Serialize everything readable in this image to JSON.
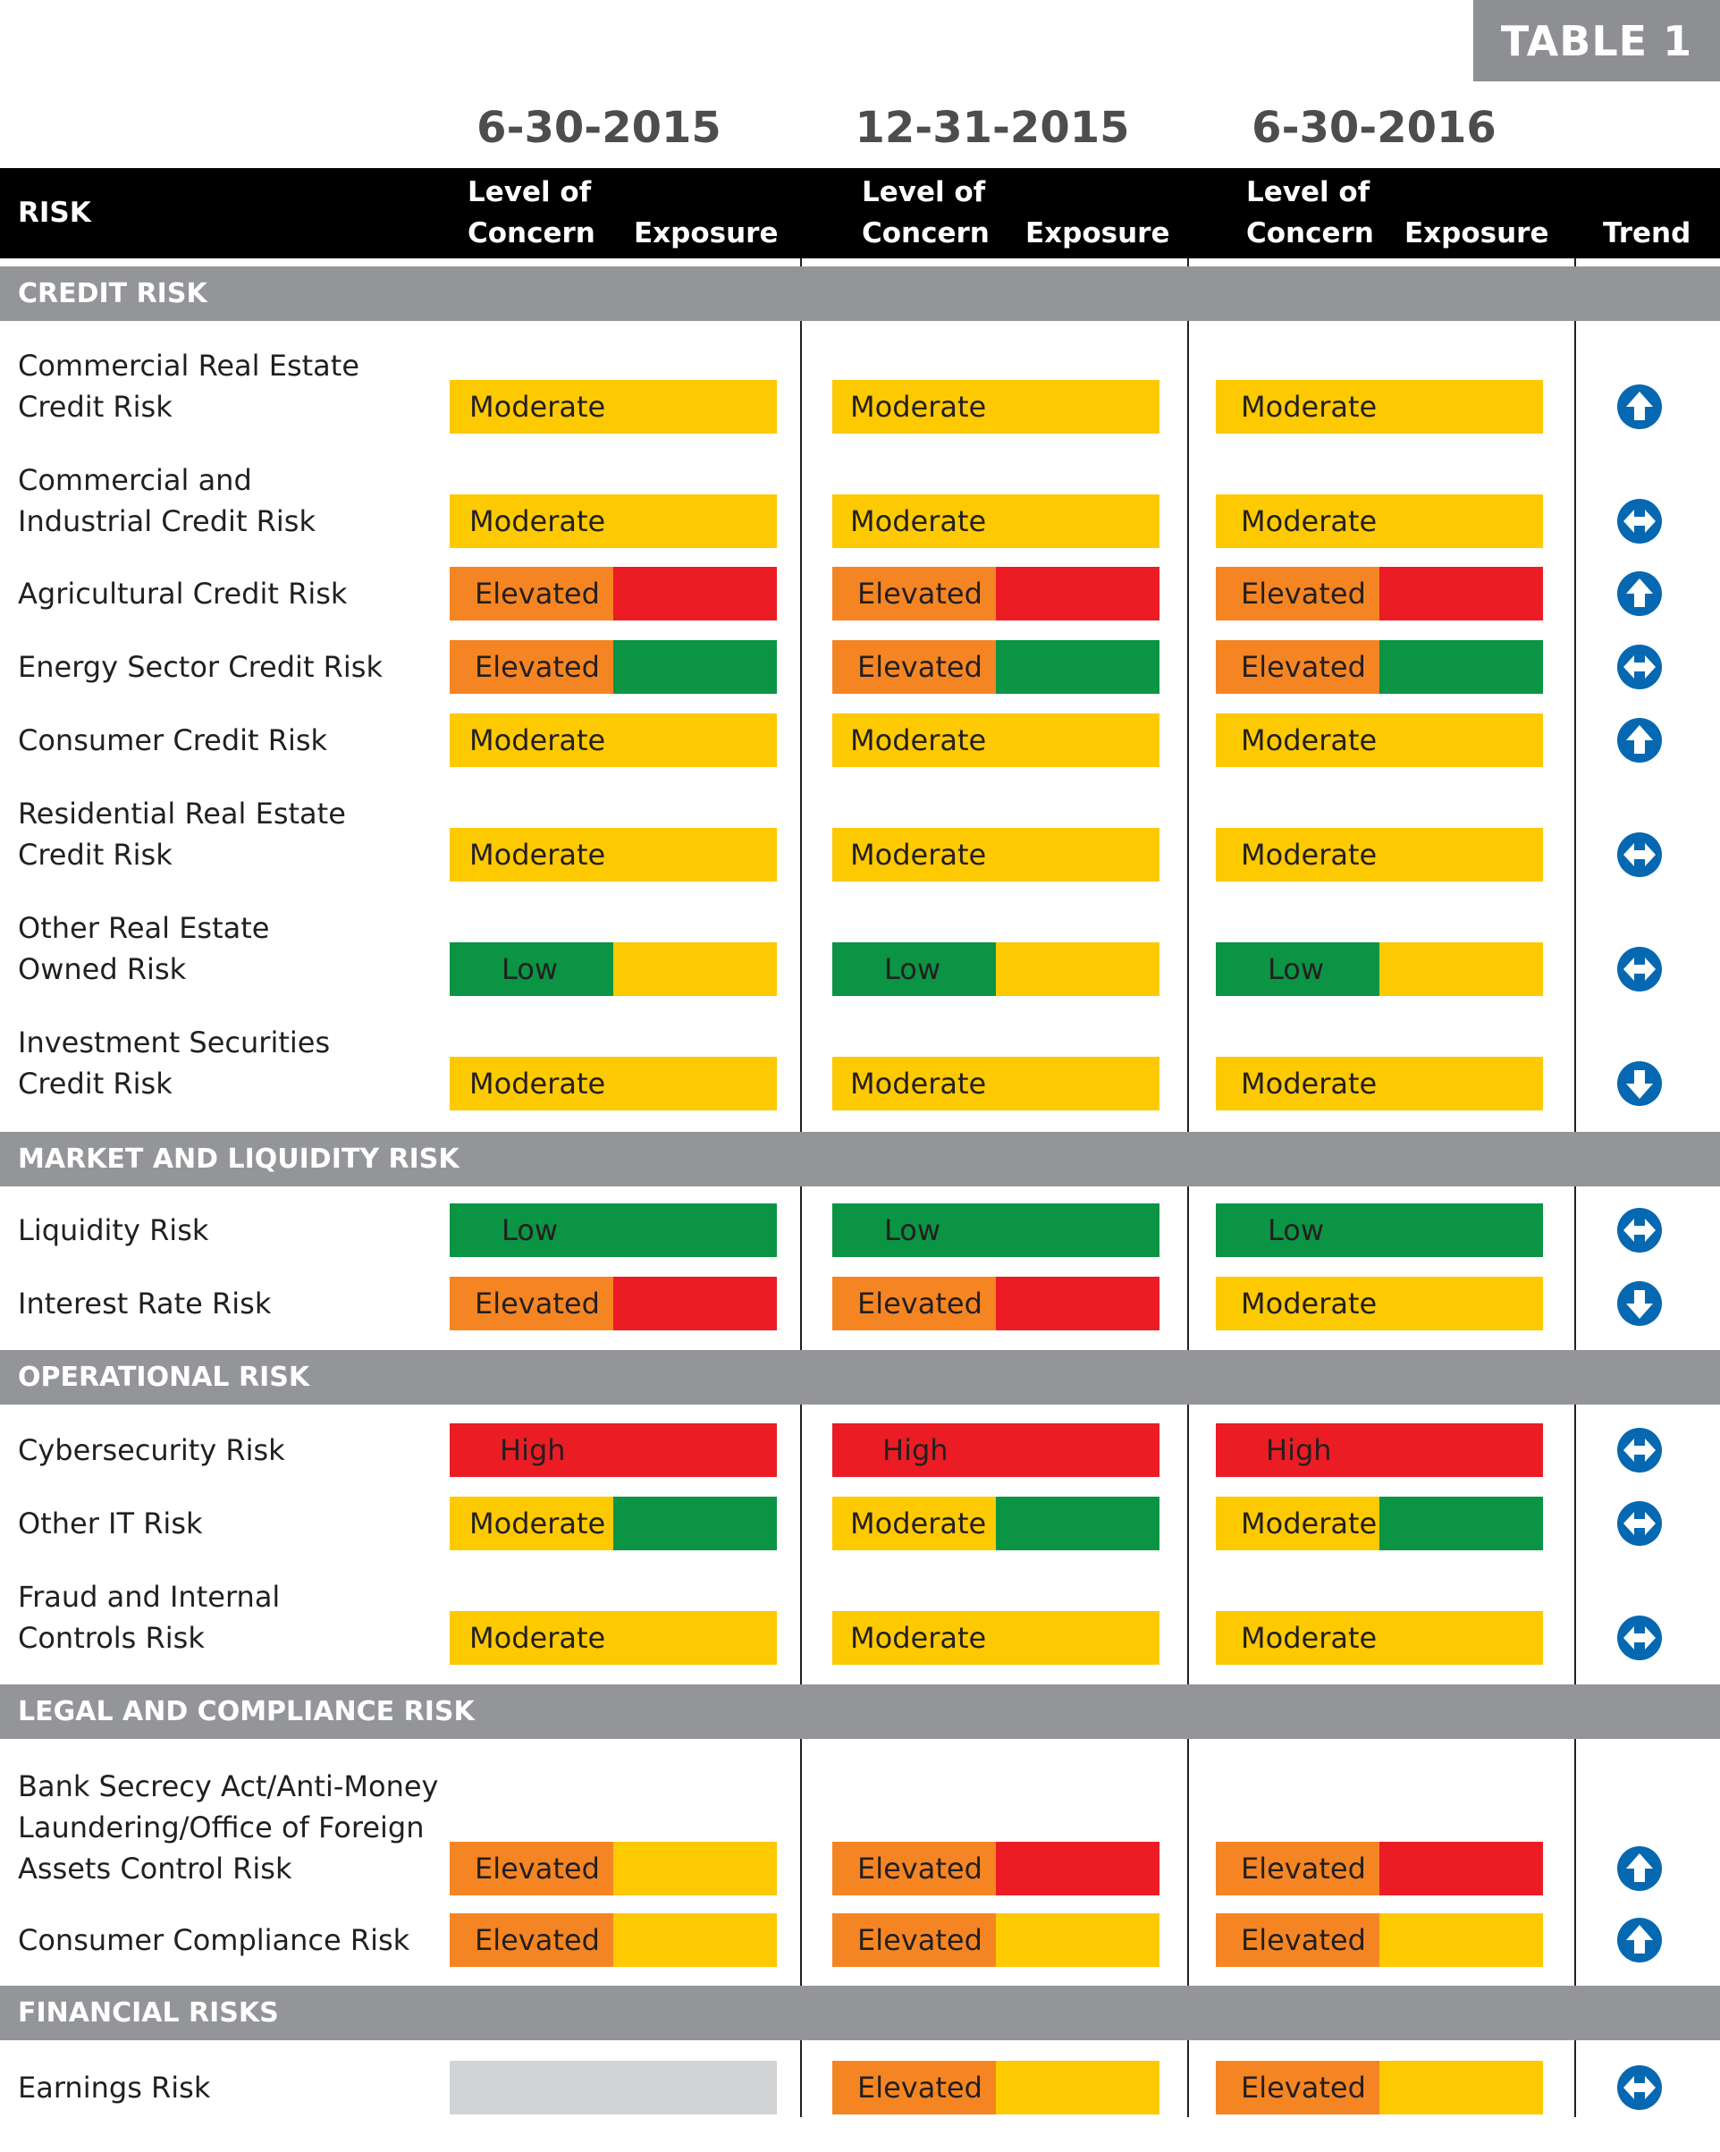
{
  "badge": "TABLE 1",
  "periods": [
    "6-30-2015",
    "12-31-2015",
    "6-30-2016"
  ],
  "header": {
    "risk": "RISK",
    "level_line1": "Level of",
    "level_line2": "Concern",
    "exposure": "Exposure",
    "trend": "Trend"
  },
  "colors": {
    "Low": "#0a9444",
    "Moderate": "#fdc900",
    "Elevated": "#f58523",
    "High": "#ec1c24",
    "None": "#d1d3d4",
    "trend": "#0668b1"
  },
  "sections": [
    {
      "name": "CREDIT RISK",
      "rows": [
        {
          "label": [
            "Commercial Real Estate",
            "Credit Risk"
          ],
          "trend": "up",
          "cells": [
            {
              "level": "Moderate",
              "exposure": "Moderate"
            },
            {
              "level": "Moderate",
              "exposure": "Moderate"
            },
            {
              "level": "Moderate",
              "exposure": "Moderate"
            }
          ]
        },
        {
          "label": [
            "Commercial and",
            "Industrial Credit Risk"
          ],
          "trend": "flat",
          "cells": [
            {
              "level": "Moderate",
              "exposure": "Moderate"
            },
            {
              "level": "Moderate",
              "exposure": "Moderate"
            },
            {
              "level": "Moderate",
              "exposure": "Moderate"
            }
          ]
        },
        {
          "label": [
            "Agricultural Credit Risk"
          ],
          "trend": "up",
          "cells": [
            {
              "level": "Elevated",
              "exposure": "High"
            },
            {
              "level": "Elevated",
              "exposure": "High"
            },
            {
              "level": "Elevated",
              "exposure": "High"
            }
          ]
        },
        {
          "label": [
            "Energy Sector Credit Risk"
          ],
          "trend": "flat",
          "cells": [
            {
              "level": "Elevated",
              "exposure": "Low"
            },
            {
              "level": "Elevated",
              "exposure": "Low"
            },
            {
              "level": "Elevated",
              "exposure": "Low"
            }
          ]
        },
        {
          "label": [
            "Consumer Credit Risk"
          ],
          "trend": "up",
          "cells": [
            {
              "level": "Moderate",
              "exposure": "Moderate"
            },
            {
              "level": "Moderate",
              "exposure": "Moderate"
            },
            {
              "level": "Moderate",
              "exposure": "Moderate"
            }
          ]
        },
        {
          "label": [
            "Residential Real Estate",
            "Credit Risk"
          ],
          "trend": "flat",
          "cells": [
            {
              "level": "Moderate",
              "exposure": "Moderate"
            },
            {
              "level": "Moderate",
              "exposure": "Moderate"
            },
            {
              "level": "Moderate",
              "exposure": "Moderate"
            }
          ]
        },
        {
          "label": [
            "Other Real Estate",
            "Owned Risk"
          ],
          "trend": "flat",
          "cells": [
            {
              "level": "Low",
              "exposure": "Moderate"
            },
            {
              "level": "Low",
              "exposure": "Moderate"
            },
            {
              "level": "Low",
              "exposure": "Moderate"
            }
          ]
        },
        {
          "label": [
            "Investment Securities",
            "Credit Risk"
          ],
          "trend": "down",
          "cells": [
            {
              "level": "Moderate",
              "exposure": "Moderate"
            },
            {
              "level": "Moderate",
              "exposure": "Moderate"
            },
            {
              "level": "Moderate",
              "exposure": "Moderate"
            }
          ]
        }
      ]
    },
    {
      "name": "MARKET AND LIQUIDITY RISK",
      "rows": [
        {
          "label": [
            "Liquidity Risk"
          ],
          "trend": "flat",
          "cells": [
            {
              "level": "Low",
              "exposure": "Low"
            },
            {
              "level": "Low",
              "exposure": "Low"
            },
            {
              "level": "Low",
              "exposure": "Low"
            }
          ]
        },
        {
          "label": [
            "Interest Rate Risk"
          ],
          "trend": "down",
          "cells": [
            {
              "level": "Elevated",
              "exposure": "High"
            },
            {
              "level": "Elevated",
              "exposure": "High"
            },
            {
              "level": "Moderate",
              "exposure": "Moderate"
            }
          ]
        }
      ]
    },
    {
      "name": "OPERATIONAL RISK",
      "rows": [
        {
          "label": [
            "Cybersecurity Risk"
          ],
          "trend": "flat",
          "cells": [
            {
              "level": "High",
              "exposure": "High"
            },
            {
              "level": "High",
              "exposure": "High"
            },
            {
              "level": "High",
              "exposure": "High"
            }
          ]
        },
        {
          "label": [
            "Other IT Risk"
          ],
          "trend": "flat",
          "cells": [
            {
              "level": "Moderate",
              "exposure": "Low"
            },
            {
              "level": "Moderate",
              "exposure": "Low"
            },
            {
              "level": "Moderate",
              "exposure": "Low"
            }
          ]
        },
        {
          "label": [
            "Fraud and Internal",
            "Controls Risk"
          ],
          "trend": "flat",
          "cells": [
            {
              "level": "Moderate",
              "exposure": "Moderate"
            },
            {
              "level": "Moderate",
              "exposure": "Moderate"
            },
            {
              "level": "Moderate",
              "exposure": "Moderate"
            }
          ]
        }
      ]
    },
    {
      "name": "LEGAL AND COMPLIANCE RISK",
      "rows": [
        {
          "label": [
            "Bank Secrecy Act/Anti-Money",
            "Laundering/Office of Foreign",
            "Assets Control Risk"
          ],
          "trend": "up",
          "cells": [
            {
              "level": "Elevated",
              "exposure": "Moderate"
            },
            {
              "level": "Elevated",
              "exposure": "High"
            },
            {
              "level": "Elevated",
              "exposure": "High"
            }
          ]
        },
        {
          "label": [
            "Consumer Compliance Risk"
          ],
          "trend": "up",
          "cells": [
            {
              "level": "Elevated",
              "exposure": "Moderate"
            },
            {
              "level": "Elevated",
              "exposure": "Moderate"
            },
            {
              "level": "Elevated",
              "exposure": "Moderate"
            }
          ]
        }
      ]
    },
    {
      "name": "FINANCIAL RISKS",
      "rows": [
        {
          "label": [
            "Earnings Risk"
          ],
          "trend": "flat",
          "cells": [
            {
              "level": "None",
              "exposure": "None"
            },
            {
              "level": "Elevated",
              "exposure": "Moderate"
            },
            {
              "level": "Elevated",
              "exposure": "Moderate"
            }
          ]
        }
      ]
    }
  ]
}
